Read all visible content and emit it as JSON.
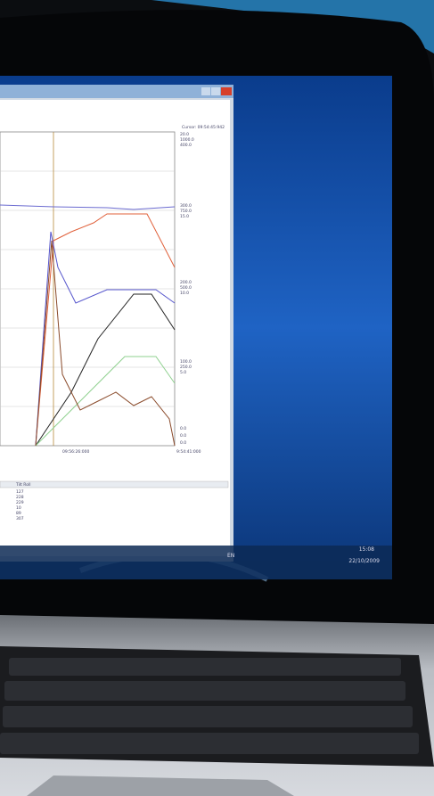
{
  "window": {
    "cursor_label": "Cursor: 09:54:45:942",
    "axis_labels": [
      "20.0",
      "1000.0",
      "400.0",
      "300.0",
      "750.0",
      "15.0",
      "200.0",
      "500.0",
      "10.0",
      "100.0",
      "250.0",
      "5.0",
      "0.0",
      "0.0",
      "0.0"
    ],
    "x_labels": [
      "09:56:26:000",
      "9:54:41:000"
    ],
    "table_header": "Tilt Roll",
    "table_values": [
      "127",
      "228",
      "229",
      "10",
      "89",
      "307"
    ]
  },
  "taskbar": {
    "language": "EN",
    "time": "15:08",
    "date": "22/10/2009"
  }
}
